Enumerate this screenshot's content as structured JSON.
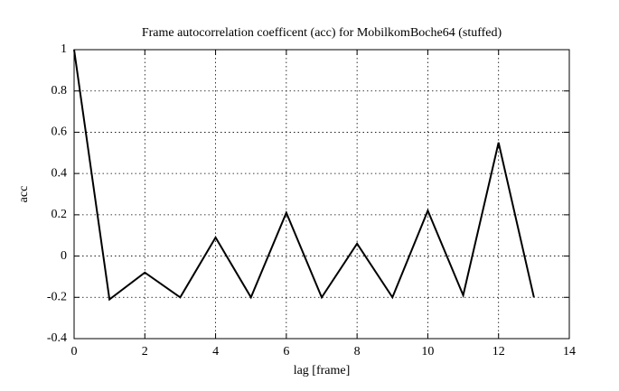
{
  "chart_data": {
    "type": "line",
    "title": "Frame autocorrelation coefficent (acc) for MobilkomBoche64 (stuffed)",
    "x_label": "lag [frame]",
    "y_label": "acc",
    "x": [
      0,
      1,
      2,
      3,
      4,
      5,
      6,
      7,
      8,
      9,
      10,
      11,
      12,
      13
    ],
    "series": [
      {
        "name": "acc",
        "color": "#000000",
        "values": [
          1,
          -0.21,
          -0.08,
          -0.2,
          0.09,
          -0.2,
          0.21,
          -0.2,
          0.06,
          -0.2,
          0.22,
          -0.19,
          0.55,
          -0.2
        ]
      }
    ],
    "xlim": [
      0,
      14
    ],
    "xticks": [
      0,
      2,
      4,
      6,
      8,
      10,
      12,
      14
    ],
    "ylim": [
      -0.4,
      1
    ],
    "yticks": [
      -0.4,
      -0.2,
      0,
      0.2,
      0.4,
      0.6,
      0.8,
      1
    ],
    "grid": true
  }
}
